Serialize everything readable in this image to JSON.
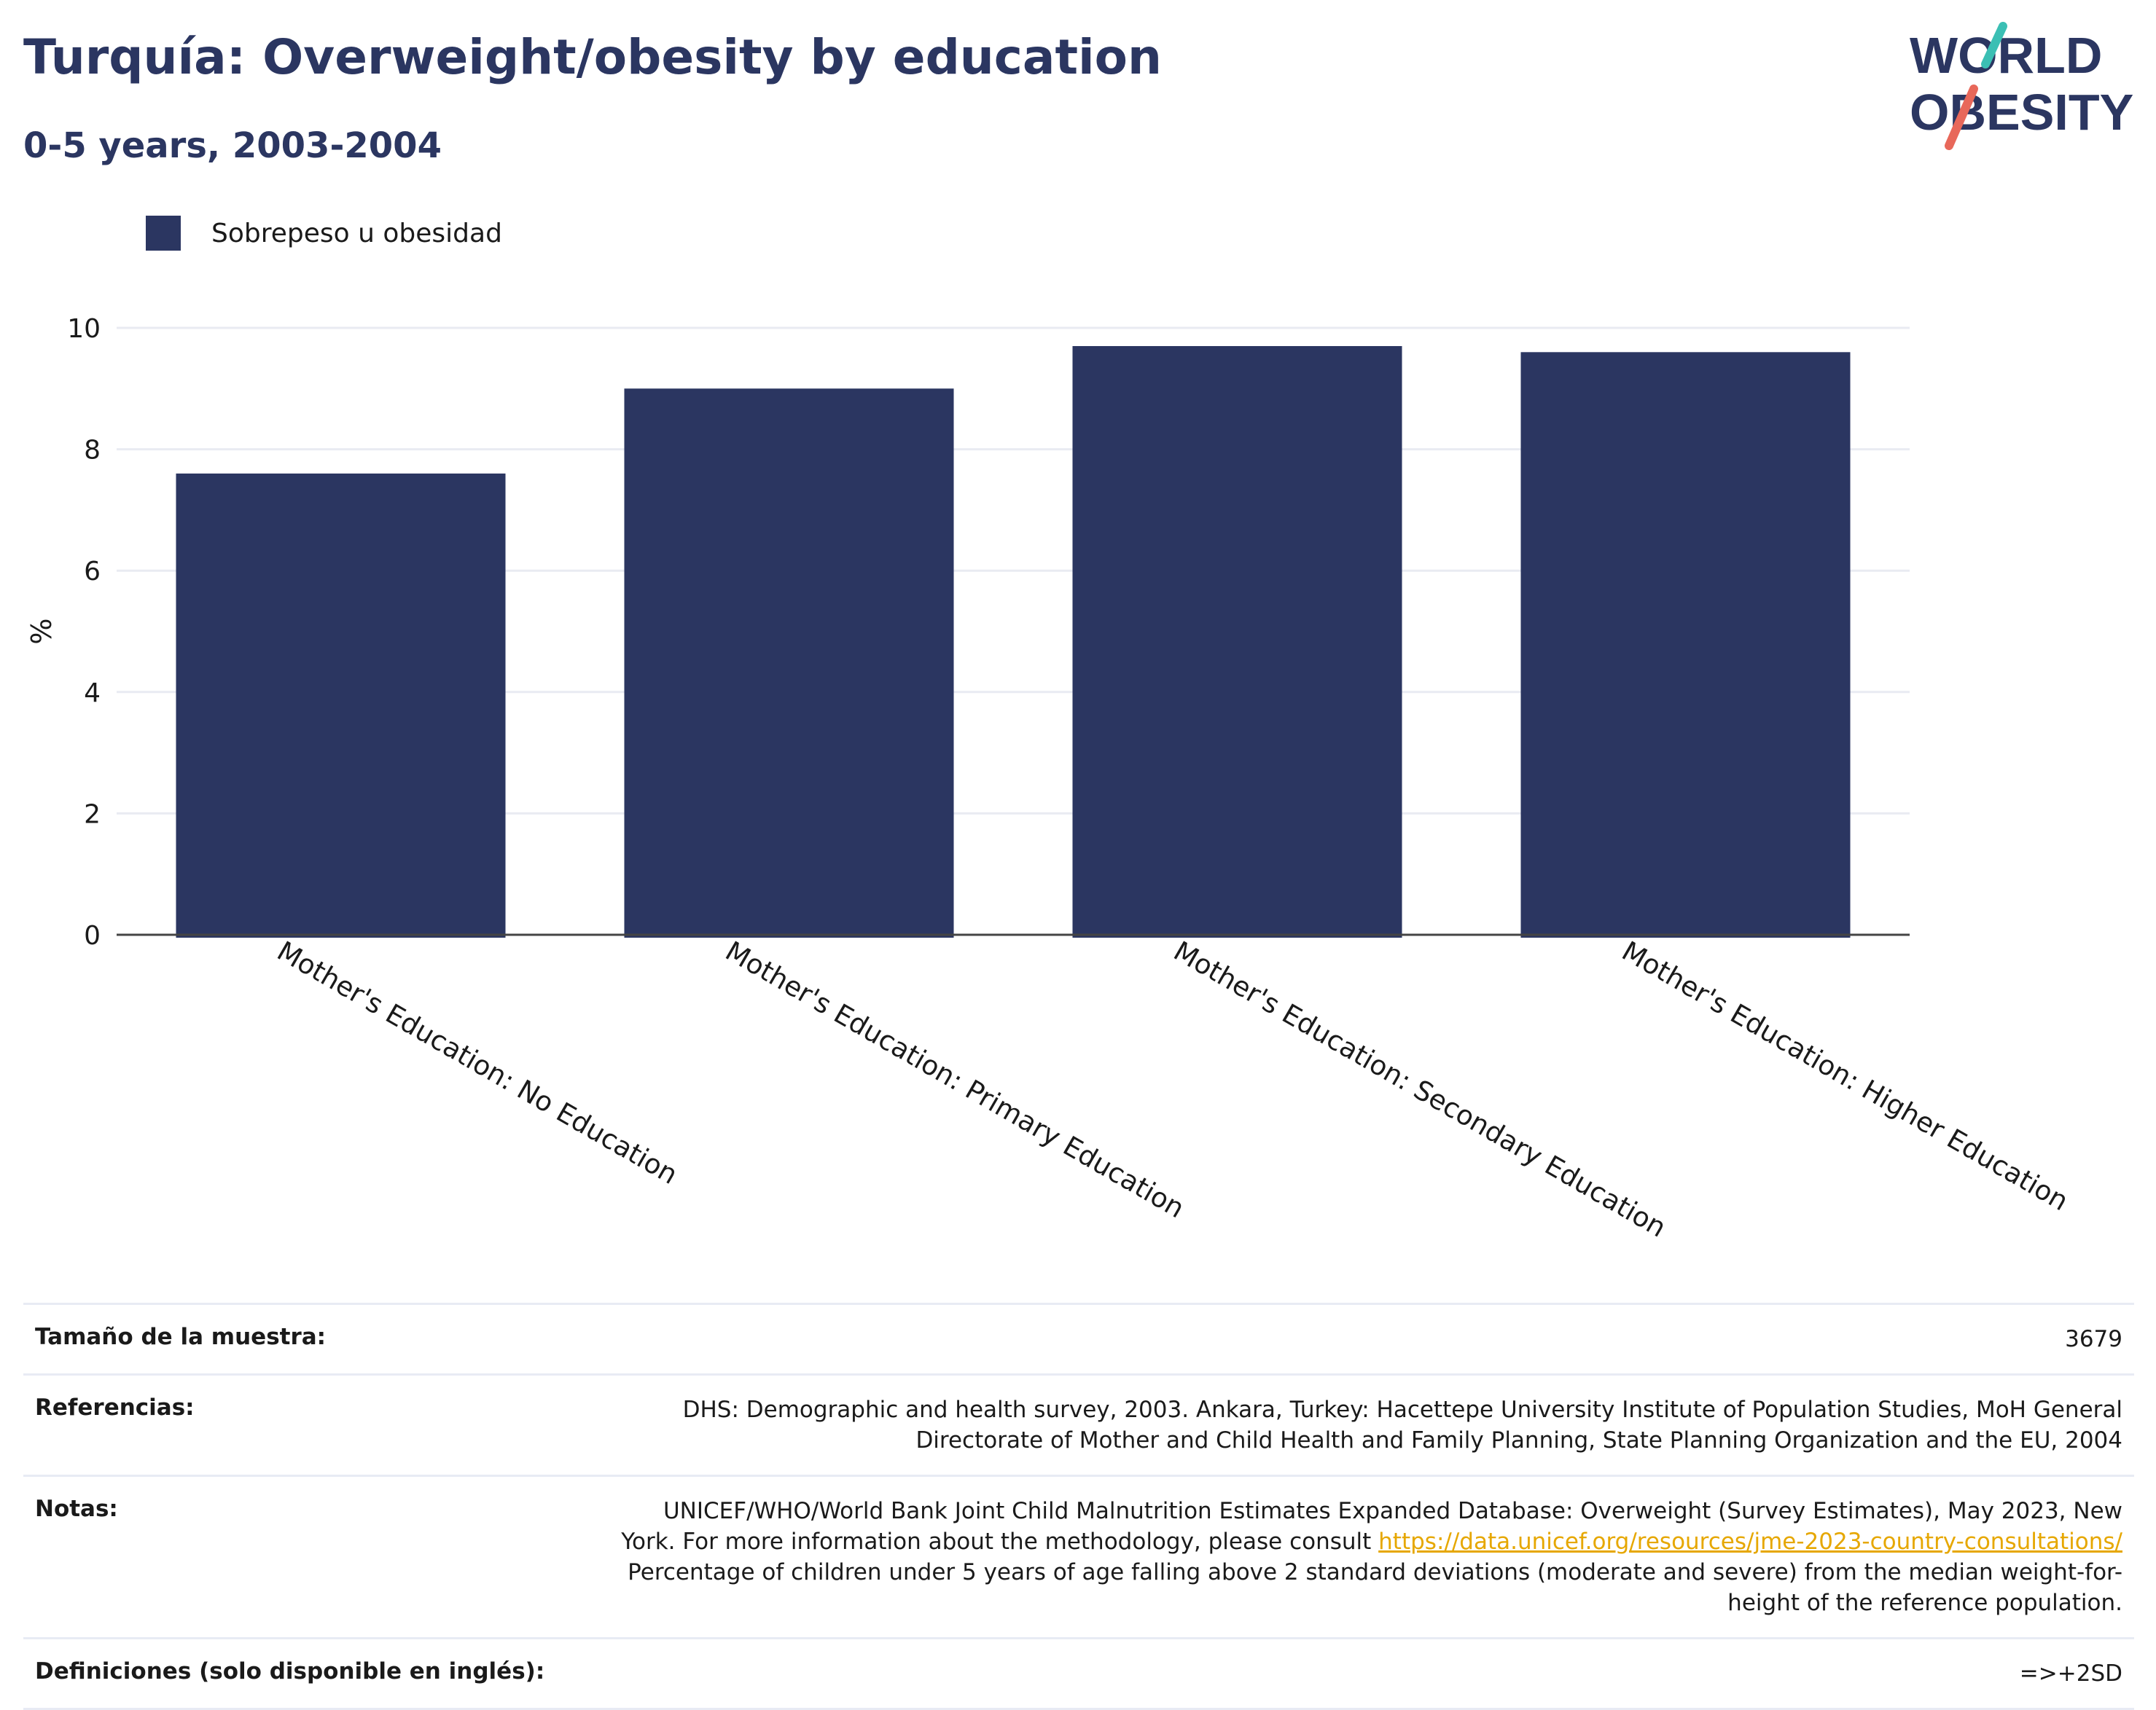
{
  "header": {
    "title": "Turquía: Overweight/obesity by education",
    "subtitle": "0-5 years, 2003-2004"
  },
  "logo": {
    "line1": "WORLD",
    "line2": "OBESITY",
    "accent_teal": "#3bbfb4",
    "accent_coral": "#e8685a",
    "text_color": "#2b3661"
  },
  "legend": {
    "label": "Sobrepeso u obesidad",
    "color": "#2b3661"
  },
  "chart_data": {
    "type": "bar",
    "categories": [
      "Mother's Education: No Education",
      "Mother's Education: Primary Education",
      "Mother's Education: Secondary Education",
      "Mother's Education: Higher Education"
    ],
    "series": [
      {
        "name": "Sobrepeso u obesidad",
        "values": [
          7.6,
          9.0,
          9.7,
          9.6
        ],
        "color": "#2b3661"
      }
    ],
    "ylabel": "%",
    "ylim": [
      0,
      10
    ],
    "yticks": [
      "0",
      "2",
      "4",
      "6",
      "8",
      "10"
    ],
    "grid": true,
    "legend_position": "top-left"
  },
  "info": {
    "sample_label": "Tamaño de la muestra:",
    "sample_value": "3679",
    "refs_label": "Referencias:",
    "refs_value": "DHS: Demographic and health survey, 2003. Ankara, Turkey: Hacettepe University Institute of Population Studies, MoH General Directorate of Mother and Child Health and Family Planning, State Planning Organization and the EU, 2004",
    "notes_label": "Notas:",
    "notes_before": "UNICEF/WHO/World Bank Joint Child Malnutrition Estimates Expanded Database: Overweight (Survey Estimates), May 2023, New York. For more information about the methodology, please consult ",
    "notes_link": "https://data.unicef.org/resources/jme-2023-country-consultations/",
    "notes_after": " Percentage of children under 5 years of age falling above 2 standard deviations (moderate and severe) from the median weight-for-height of the reference population.",
    "defs_label": "Definiciones (solo disponible en inglés):",
    "defs_value": "=>+2SD"
  }
}
